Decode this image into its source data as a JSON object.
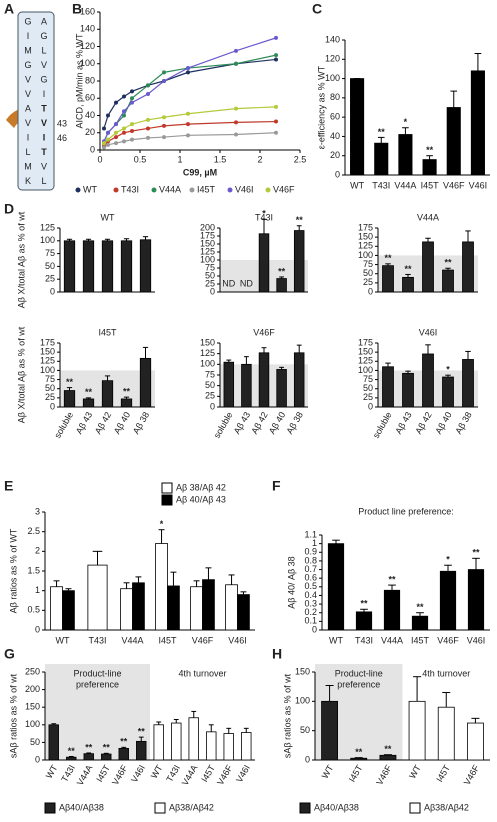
{
  "panel_labels": [
    "A",
    "B",
    "C",
    "D",
    "E",
    "F",
    "G",
    "H"
  ],
  "sequence": {
    "left": [
      "G",
      "I",
      "M",
      "G",
      "V",
      "V",
      "A",
      "V",
      "I",
      "L",
      "M",
      "K"
    ],
    "right": [
      "A",
      "G",
      "L",
      "V",
      "G",
      "I",
      "T",
      "V",
      "I",
      "T",
      "V",
      "L"
    ],
    "highlight_color": "#d62828",
    "highlight": [
      false,
      false,
      false,
      false,
      false,
      false,
      true,
      true,
      true,
      true,
      false,
      false
    ],
    "markers": [
      "43",
      "46"
    ]
  },
  "chart_data": [
    {
      "type": "line",
      "xlabel": "C99, µM",
      "ylabel": "AICD, pM/min as % WT",
      "x": [
        0.05,
        0.1,
        0.2,
        0.3,
        0.4,
        0.6,
        0.8,
        1.1,
        1.7,
        2.2
      ],
      "series": [
        {
          "name": "WT",
          "color": "#1f2f5f",
          "values": [
            25,
            40,
            55,
            62,
            68,
            75,
            80,
            90,
            100,
            105
          ]
        },
        {
          "name": "T43I",
          "color": "#c0392b",
          "values": [
            5,
            10,
            15,
            20,
            22,
            25,
            28,
            30,
            32,
            33
          ]
        },
        {
          "name": "V44A",
          "color": "#2e8b57",
          "values": [
            10,
            20,
            30,
            40,
            60,
            75,
            90,
            95,
            100,
            110
          ]
        },
        {
          "name": "I45T",
          "color": "#999999",
          "values": [
            3,
            6,
            8,
            10,
            12,
            14,
            15,
            17,
            18,
            20
          ]
        },
        {
          "name": "V46I",
          "color": "#6a5acd",
          "values": [
            10,
            20,
            30,
            45,
            55,
            65,
            80,
            95,
            115,
            130
          ]
        },
        {
          "name": "V46F",
          "color": "#b5c93a",
          "values": [
            8,
            12,
            20,
            25,
            30,
            35,
            38,
            42,
            48,
            50
          ]
        }
      ],
      "xlim": [
        0,
        2.5
      ],
      "xticks": [
        0,
        0.5,
        1,
        1.5,
        2,
        2.5
      ],
      "ylim": [
        0,
        160
      ],
      "yticks": [
        0,
        20,
        40,
        60,
        80,
        100,
        120,
        140,
        160
      ],
      "legend": "bottom"
    },
    {
      "type": "bar",
      "ylabel": "ε-efficiency as % WT",
      "categories": [
        "WT",
        "T43I",
        "V44A",
        "I45T",
        "V46F",
        "V46I"
      ],
      "series": [
        {
          "color": "#000000",
          "values": [
            100,
            33,
            42,
            16,
            70,
            108
          ],
          "errors": [
            0,
            6,
            7,
            4,
            17,
            18
          ],
          "significance": [
            null,
            "**",
            "*",
            "**",
            null,
            null
          ]
        }
      ],
      "ylim": [
        0,
        140
      ],
      "yticks": [
        0,
        20,
        40,
        60,
        80,
        100,
        120,
        140
      ]
    },
    {
      "type": "bar",
      "title": "WT",
      "ylabel": "Aβ X/total Aβ as % of wt",
      "categories": [
        null,
        null,
        null,
        null,
        null
      ],
      "series": [
        {
          "color": "#222222",
          "values": [
            100,
            100,
            100,
            100,
            102
          ],
          "errors": [
            3,
            3,
            3,
            4,
            6
          ]
        }
      ],
      "ylim": [
        0,
        125
      ],
      "yticks": [
        0,
        25,
        50,
        75,
        100,
        125
      ]
    },
    {
      "type": "bar",
      "title": "T43I",
      "categories": [
        null,
        null,
        null,
        null,
        null
      ],
      "series": [
        {
          "color": "#222222",
          "values": [
            null,
            null,
            182,
            42,
            192
          ],
          "value_labels": [
            "ND",
            "ND",
            null,
            null,
            null
          ],
          "errors": [
            null,
            null,
            45,
            5,
            15
          ],
          "significance": [
            null,
            null,
            "*",
            "**",
            "**"
          ]
        }
      ],
      "ylim": [
        0,
        200
      ],
      "yticks": [
        0,
        25,
        50,
        75,
        100,
        125,
        150,
        175,
        200
      ],
      "shade_below": 100
    },
    {
      "type": "bar",
      "title": "V44A",
      "categories": [
        null,
        null,
        null,
        null,
        null
      ],
      "series": [
        {
          "color": "#222222",
          "values": [
            72,
            40,
            137,
            60,
            137
          ],
          "errors": [
            5,
            8,
            10,
            5,
            30
          ],
          "significance": [
            "**",
            "**",
            null,
            "**",
            null
          ]
        }
      ],
      "ylim": [
        0,
        175
      ],
      "yticks": [
        0,
        25,
        50,
        75,
        100,
        125,
        150,
        175
      ],
      "shade_below": 100
    },
    {
      "type": "bar",
      "title": "I45T",
      "ylabel": "Aβ X/total Aβ as % of wt",
      "categories": [
        "soluble",
        "Aβ 43",
        "Aβ 42",
        "Aβ 40",
        "Aβ 38"
      ],
      "series": [
        {
          "color": "#222222",
          "values": [
            45,
            22,
            72,
            22,
            133
          ],
          "errors": [
            8,
            3,
            13,
            5,
            30
          ],
          "significance": [
            "**",
            "**",
            null,
            "**",
            null
          ]
        }
      ],
      "ylim": [
        0,
        175
      ],
      "yticks": [
        0,
        25,
        50,
        75,
        100,
        125,
        150,
        175
      ],
      "shade_below": 100
    },
    {
      "type": "bar",
      "title": "V46F",
      "categories": [
        "soluble",
        "Aβ 43",
        "Aβ 42",
        "Aβ 40",
        "Aβ 38"
      ],
      "series": [
        {
          "color": "#222222",
          "values": [
            105,
            100,
            127,
            88,
            127
          ],
          "errors": [
            5,
            18,
            12,
            5,
            18
          ]
        }
      ],
      "ylim": [
        0,
        150
      ],
      "yticks": [
        0,
        25,
        50,
        75,
        100,
        125,
        150
      ],
      "shade_below": 100
    },
    {
      "type": "bar",
      "title": "V46I",
      "categories": [
        "soluble",
        "Aβ 43",
        "Aβ 42",
        "Aβ 40",
        "Aβ 38"
      ],
      "series": [
        {
          "color": "#222222",
          "values": [
            110,
            92,
            145,
            82,
            130
          ],
          "errors": [
            10,
            6,
            25,
            5,
            22
          ],
          "significance": [
            null,
            null,
            null,
            "*",
            null
          ]
        }
      ],
      "ylim": [
        0,
        175
      ],
      "yticks": [
        0,
        25,
        50,
        75,
        100,
        125,
        150,
        175
      ],
      "shade_below": 100
    },
    {
      "type": "bar",
      "ylabel": "Aβ ratios as % of WT",
      "categories": [
        "WT",
        "T43I",
        "V44A",
        "I45T",
        "V46F",
        "V46I"
      ],
      "series": [
        {
          "name": "Aβ 38/Aβ 42",
          "color": "#ffffff",
          "values": [
            1.1,
            1.65,
            1.05,
            2.2,
            1.1,
            1.15
          ],
          "errors": [
            0.15,
            0.35,
            0.15,
            0.35,
            0.15,
            0.25
          ],
          "significance": [
            null,
            null,
            null,
            "*",
            null,
            null
          ]
        },
        {
          "name": "Aβ 40/Aβ 43",
          "color": "#000000",
          "values": [
            1.0,
            null,
            1.2,
            1.12,
            1.28,
            0.9
          ],
          "errors": [
            0.05,
            null,
            0.15,
            0.35,
            0.3,
            0.07
          ]
        }
      ],
      "ylim": [
        0,
        3
      ],
      "yticks": [
        0,
        0.5,
        1,
        1.5,
        2,
        2.5,
        3
      ],
      "legend": "top-right"
    },
    {
      "type": "bar",
      "title": "Product line preference:",
      "ylabel": "Aβ 40/ Aβ 38",
      "categories": [
        "WT",
        "T43I",
        "V44A",
        "I45T",
        "V46F",
        "V46I"
      ],
      "series": [
        {
          "color": "#000000",
          "values": [
            1,
            0.21,
            0.46,
            0.16,
            0.68,
            0.7
          ],
          "errors": [
            0.04,
            0.03,
            0.06,
            0.04,
            0.07,
            0.13
          ],
          "significance": [
            null,
            "**",
            "**",
            "**",
            "*",
            "**"
          ]
        }
      ],
      "ylim": [
        0,
        1.1
      ],
      "yticks": [
        0,
        0.1,
        0.2,
        0.3,
        0.4,
        0.5,
        0.6,
        0.7,
        0.8,
        0.9,
        1,
        1.1
      ]
    },
    {
      "type": "bar",
      "ylabel": "sAβ ratios as % of wt",
      "categories": [
        "WT",
        "T43I",
        "V44A",
        "I45T",
        "V46F",
        "V46I",
        "WT",
        "T43I",
        "V44A",
        "I45T",
        "V46F",
        "V46I"
      ],
      "series": [
        {
          "name": "Aβ40/Aβ38",
          "color": "#222222",
          "values": [
            100,
            8,
            18,
            17,
            33,
            53,
            null,
            null,
            null,
            null,
            null,
            null
          ],
          "errors": [
            3,
            2,
            2,
            2,
            3,
            12,
            null,
            null,
            null,
            null,
            null,
            null
          ],
          "significance": [
            null,
            "**",
            "**",
            "**",
            "**",
            "**",
            null,
            null,
            null,
            null,
            null,
            null
          ]
        },
        {
          "name": "Aβ38/Aβ42",
          "color": "#ffffff",
          "values": [
            null,
            null,
            null,
            null,
            null,
            null,
            100,
            105,
            120,
            80,
            75,
            78
          ],
          "errors": [
            null,
            null,
            null,
            null,
            null,
            null,
            8,
            10,
            18,
            20,
            15,
            12
          ]
        }
      ],
      "group_labels": [
        [
          "Product-line",
          "preference"
        ],
        [
          "4th turnover"
        ]
      ],
      "group_fill": [
        "#e4e4e4",
        "#ffffff"
      ],
      "ylim": [
        0,
        250
      ],
      "yticks": [
        0,
        50,
        100,
        150,
        200,
        250
      ],
      "legend": "bottom"
    },
    {
      "type": "bar",
      "ylabel": "sAβ ratios as % of wt",
      "categories": [
        "WT",
        "I45T",
        "V46F",
        "WT",
        "I45T",
        "V46F"
      ],
      "series": [
        {
          "name": "Aβ40/Aβ38",
          "color": "#222222",
          "values": [
            100,
            3,
            8,
            null,
            null,
            null
          ],
          "errors": [
            27,
            1,
            1,
            null,
            null,
            null
          ],
          "significance": [
            null,
            "**",
            "**",
            null,
            null,
            null
          ]
        },
        {
          "name": "Aβ38/Aβ42",
          "color": "#ffffff",
          "values": [
            null,
            null,
            null,
            100,
            90,
            63
          ],
          "errors": [
            null,
            null,
            null,
            42,
            25,
            8
          ]
        }
      ],
      "group_labels": [
        [
          "Product-line",
          "preference"
        ],
        [
          "4th turnover"
        ]
      ],
      "group_fill": [
        "#e4e4e4",
        "#ffffff"
      ],
      "ylim": [
        0,
        150
      ],
      "yticks": [
        0,
        50,
        100,
        150
      ],
      "legend": "bottom"
    }
  ]
}
